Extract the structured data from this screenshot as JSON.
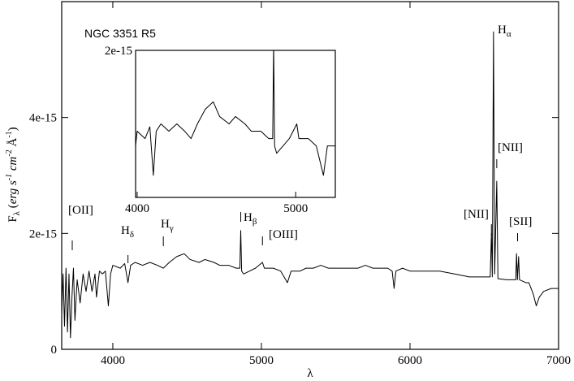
{
  "chart_data": {
    "type": "line",
    "x_label": "λ",
    "y_label": [
      "F",
      "λ",
      " (",
      "erg s",
      "-1",
      " cm",
      "-2",
      " Å",
      "-1",
      ")"
    ],
    "xlim": [
      3656,
      7000
    ],
    "ylim": [
      0,
      6e-15
    ],
    "xticks": [
      4000,
      5000,
      6000,
      7000
    ],
    "yticks": [
      0,
      2e-15,
      4e-15
    ],
    "x": [
      3656,
      3665,
      3675,
      3685,
      3695,
      3705,
      3715,
      3725,
      3735,
      3745,
      3760,
      3780,
      3800,
      3820,
      3840,
      3860,
      3880,
      3890,
      3910,
      3930,
      3950,
      3970,
      3985,
      4000,
      4050,
      4080,
      4102,
      4120,
      4150,
      4200,
      4250,
      4300,
      4340,
      4380,
      4430,
      4480,
      4520,
      4580,
      4620,
      4680,
      4720,
      4780,
      4830,
      4855,
      4861,
      4867,
      4880,
      4920,
      4960,
      5007,
      5020,
      5080,
      5130,
      5175,
      5200,
      5260,
      5300,
      5350,
      5400,
      5450,
      5500,
      5550,
      5600,
      5650,
      5700,
      5750,
      5800,
      5850,
      5880,
      5893,
      5905,
      5950,
      6000,
      6100,
      6200,
      6300,
      6400,
      6500,
      6540,
      6548,
      6554,
      6562,
      6570,
      6584,
      6592,
      6650,
      6700,
      6712,
      6717,
      6723,
      6731,
      6737,
      6780,
      6800,
      6830,
      6850,
      6870,
      6900,
      6950,
      7000
    ],
    "series": [
      {
        "color": "#000000",
        "values": [
          6e-16,
          1.3e-15,
          4e-16,
          1.4e-15,
          3e-16,
          1.3e-15,
          2e-16,
          9e-16,
          1.4e-15,
          5e-16,
          1.2e-15,
          8e-16,
          1.3e-15,
          1e-15,
          1.35e-15,
          1e-15,
          1.3e-15,
          9e-16,
          1.35e-15,
          1.3e-15,
          1.35e-15,
          7.5e-16,
          1.3e-15,
          1.45e-15,
          1.4e-15,
          1.48e-15,
          1.15e-15,
          1.45e-15,
          1.5e-15,
          1.45e-15,
          1.5e-15,
          1.45e-15,
          1.4e-15,
          1.5e-15,
          1.6e-15,
          1.65e-15,
          1.55e-15,
          1.5e-15,
          1.55e-15,
          1.5e-15,
          1.45e-15,
          1.45e-15,
          1.4e-15,
          1.4e-15,
          2.05e-15,
          1.35e-15,
          1.3e-15,
          1.35e-15,
          1.4e-15,
          1.5e-15,
          1.4e-15,
          1.4e-15,
          1.35e-15,
          1.15e-15,
          1.35e-15,
          1.35e-15,
          1.4e-15,
          1.4e-15,
          1.45e-15,
          1.4e-15,
          1.4e-15,
          1.4e-15,
          1.4e-15,
          1.4e-15,
          1.45e-15,
          1.4e-15,
          1.4e-15,
          1.4e-15,
          1.35e-15,
          1.05e-15,
          1.35e-15,
          1.4e-15,
          1.35e-15,
          1.35e-15,
          1.35e-15,
          1.3e-15,
          1.25e-15,
          1.25e-15,
          1.25e-15,
          2e-15,
          1.25e-15,
          5.48e-15,
          1.3e-15,
          2.9e-15,
          1.22e-15,
          1.2e-15,
          1.2e-15,
          1.2e-15,
          1.65e-15,
          1.2e-15,
          1.6e-15,
          1.2e-15,
          1.15e-15,
          1.15e-15,
          9.5e-16,
          7.5e-16,
          9e-16,
          1e-15,
          1.05e-15,
          1.05e-15
        ]
      }
    ],
    "annotations": [
      {
        "text": "NGC 3351 R5"
      },
      {
        "text": "[OII]",
        "wavelength": 3727
      },
      {
        "text": "H",
        "sub": "δ",
        "wavelength": 4102
      },
      {
        "text": "H",
        "sub": "γ",
        "wavelength": 4340
      },
      {
        "text": "H",
        "sub": "β",
        "wavelength": 4861
      },
      {
        "text": "[OIII]",
        "wavelength": 5007
      },
      {
        "text": "[NII]",
        "wavelength": 6548
      },
      {
        "text": "[NII]",
        "wavelength": 6584
      },
      {
        "text": "H",
        "sub": "α"
      },
      {
        "text": "[SII]",
        "wavelength": 6724
      }
    ],
    "inset": {
      "xlim": [
        3990,
        5250
      ],
      "ylim": [
        1e-15,
        2e-15
      ],
      "xticks": [
        4000,
        5000
      ],
      "yticks": [
        2e-15
      ]
    }
  }
}
